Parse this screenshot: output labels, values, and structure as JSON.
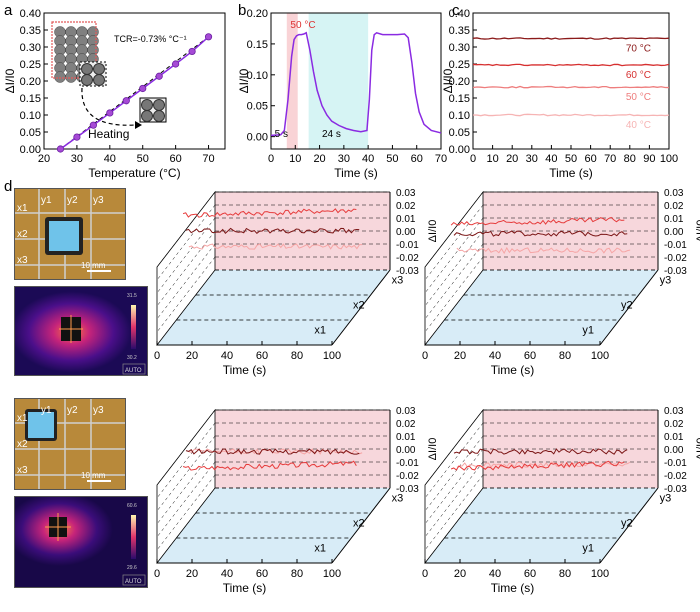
{
  "panels": {
    "a": "a",
    "b": "b",
    "c": "c",
    "d": "d"
  },
  "chart_data": [
    {
      "panel": "a",
      "type": "scatter",
      "xlabel": "Temperature (°C)",
      "ylabel": "ΔI/I0",
      "xlim": [
        20,
        75
      ],
      "ylim": [
        0,
        0.4
      ],
      "xticks": [
        20,
        30,
        40,
        50,
        60,
        70
      ],
      "yticks": [
        0.0,
        0.05,
        0.1,
        0.15,
        0.2,
        0.25,
        0.3,
        0.35,
        0.4
      ],
      "x": [
        25,
        30,
        35,
        40,
        45,
        50,
        55,
        60,
        65,
        70
      ],
      "y": [
        0.0,
        0.035,
        0.07,
        0.106,
        0.142,
        0.178,
        0.214,
        0.25,
        0.287,
        0.33
      ],
      "annotations": [
        "TCR=-0.73% °C⁻¹",
        "Heating"
      ],
      "line_color": "#8a2be2"
    },
    {
      "panel": "b",
      "type": "line",
      "xlabel": "Time (s)",
      "ylabel": "ΔI/I0",
      "xlim": [
        0,
        70
      ],
      "ylim": [
        -0.02,
        0.2
      ],
      "xticks": [
        0,
        10,
        20,
        30,
        40,
        50,
        60,
        70
      ],
      "yticks": [
        0.0,
        0.05,
        0.1,
        0.15,
        0.2
      ],
      "x": [
        0,
        4,
        5.5,
        7,
        8.5,
        9.5,
        10.5,
        11.5,
        12.5,
        13.5,
        14.5,
        16,
        17.5,
        19,
        21,
        23,
        25,
        28,
        31,
        34,
        37,
        39.5,
        40.5,
        41.5,
        42.5,
        43.5,
        46,
        49,
        52,
        55,
        56.5,
        58,
        59.5,
        61,
        63,
        66,
        70
      ],
      "y": [
        0.002,
        0.003,
        0.01,
        0.06,
        0.13,
        0.157,
        0.163,
        0.165,
        0.165,
        0.166,
        0.168,
        0.14,
        0.105,
        0.075,
        0.05,
        0.035,
        0.025,
        0.018,
        0.013,
        0.01,
        0.008,
        0.01,
        0.06,
        0.14,
        0.165,
        0.168,
        0.165,
        0.165,
        0.165,
        0.166,
        0.16,
        0.12,
        0.07,
        0.04,
        0.02,
        0.01,
        0.006
      ],
      "annotations": {
        "temp": "50 °C",
        "rise": "5 s",
        "fall": "24 s"
      },
      "shaded_regions": [
        {
          "from": 6.5,
          "to": 11,
          "color": "#f9d3d6"
        },
        {
          "from": 15.5,
          "to": 40,
          "color": "#d6f4f4"
        }
      ],
      "line_color": "#8a2be2"
    },
    {
      "panel": "c",
      "type": "line",
      "xlabel": "Time (s)",
      "ylabel": "ΔI/I0",
      "xlim": [
        0,
        100
      ],
      "ylim": [
        0,
        0.4
      ],
      "xticks": [
        0,
        10,
        20,
        30,
        40,
        50,
        60,
        70,
        80,
        90,
        100
      ],
      "yticks": [
        0.0,
        0.05,
        0.1,
        0.15,
        0.2,
        0.25,
        0.3,
        0.35,
        0.4
      ],
      "series": [
        {
          "name": "70 °C",
          "value": 0.325,
          "color": "#8b1a1a"
        },
        {
          "name": "60 °C",
          "value": 0.247,
          "color": "#d62f2f"
        },
        {
          "name": "50 °C",
          "value": 0.182,
          "color": "#ee7d7d"
        },
        {
          "name": "40 °C",
          "value": 0.1,
          "color": "#f6b4b4"
        }
      ]
    },
    {
      "panel": "d",
      "type": "line",
      "subplot": "3d-1",
      "xlabel": "Time (s)",
      "zlabel": "ΔI/I0",
      "xticks": [
        0,
        20,
        40,
        60,
        80,
        100
      ],
      "zticks": [
        "0.03",
        "0.02",
        "0.01",
        "0.00",
        "-0.01",
        "-0.02",
        "-0.03"
      ],
      "depth_labels": [
        "x3",
        "x2",
        "x1"
      ],
      "series": [
        {
          "name": "x1",
          "level": -0.012,
          "color": "#f6a5a5"
        },
        {
          "name": "x2",
          "level": 0.0,
          "color": "#7b1515"
        },
        {
          "name": "x3",
          "level": 0.012,
          "color": "#e63b3b"
        }
      ]
    },
    {
      "panel": "d",
      "type": "line",
      "subplot": "3d-2",
      "xlabel": "Time (s)",
      "zlabel": "ΔI/I0",
      "xticks": [
        0,
        20,
        40,
        60,
        80,
        100
      ],
      "zticks": [
        "0.03",
        "0.02",
        "0.01",
        "0.00",
        "-0.01",
        "-0.02",
        "-0.03"
      ],
      "depth_labels": [
        "y3",
        "y2",
        "y1"
      ],
      "series": [
        {
          "name": "y1",
          "level": -0.015,
          "color": "#f6a5a5"
        },
        {
          "name": "y2",
          "level": -0.002,
          "color": "#7b1515"
        },
        {
          "name": "y3",
          "level": 0.005,
          "color": "#e63b3b"
        }
      ]
    },
    {
      "panel": "d",
      "type": "line",
      "subplot": "3d-3",
      "xlabel": "Time (s)",
      "zlabel": "ΔI/I0",
      "xticks": [
        0,
        20,
        40,
        60,
        80,
        100
      ],
      "zticks": [
        "0.03",
        "0.02",
        "0.01",
        "0.00",
        "-0.01",
        "-0.02",
        "-0.03"
      ],
      "depth_labels": [
        "x3",
        "x2",
        "x1"
      ],
      "series": [
        {
          "name": "x1",
          "level": -0.002,
          "color": "#f6a5a5"
        },
        {
          "name": "x2",
          "level": -0.002,
          "color": "#7b1515"
        },
        {
          "name": "x3",
          "level": -0.015,
          "color": "#e63b3b"
        }
      ]
    },
    {
      "panel": "d",
      "type": "line",
      "subplot": "3d-4",
      "xlabel": "Time (s)",
      "zlabel": "ΔI/I0",
      "xticks": [
        0,
        20,
        40,
        60,
        80,
        100
      ],
      "zticks": [
        "0.03",
        "0.02",
        "0.01",
        "0.00",
        "-0.01",
        "-0.02",
        "-0.03"
      ],
      "depth_labels": [
        "y3",
        "y2",
        "y1"
      ],
      "series": [
        {
          "name": "y1",
          "level": -0.012,
          "color": "#f6a5a5"
        },
        {
          "name": "y2",
          "level": -0.002,
          "color": "#7b1515"
        },
        {
          "name": "y3",
          "level": -0.015,
          "color": "#e63b3b"
        }
      ]
    }
  ],
  "photos": {
    "grid_labels_top": [
      "y1",
      "y2",
      "y3"
    ],
    "grid_labels_left": [
      "x1",
      "x2",
      "x3"
    ],
    "scale_bar": "10 mm",
    "thermal_mode": "AUTO",
    "thermal_scale_top_1": "31.5",
    "thermal_scale_bottom_1": "30.2",
    "thermal_scale_top_2": "60.6",
    "thermal_scale_bottom_2": "29.6"
  }
}
